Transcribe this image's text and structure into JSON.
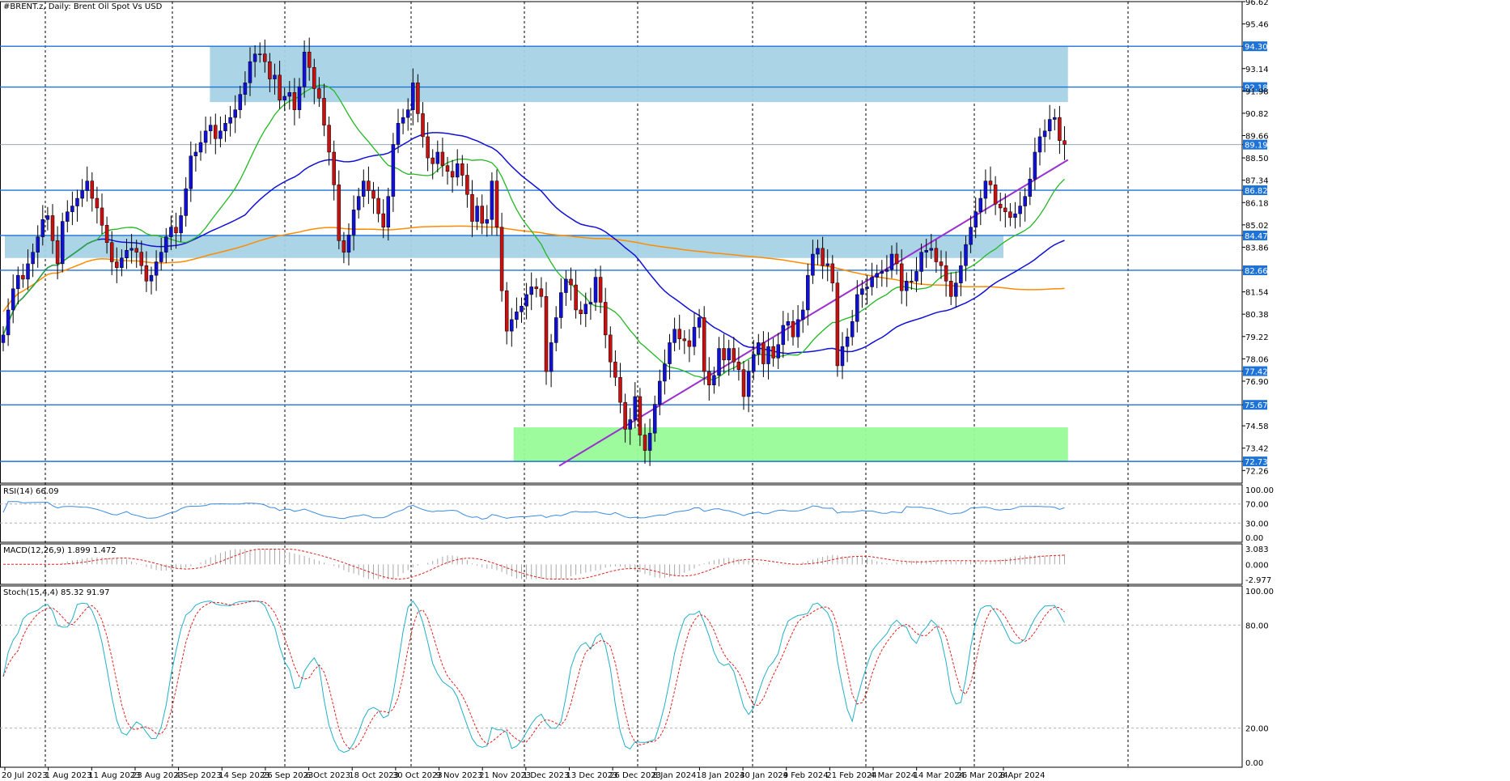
{
  "chart_data": {
    "type": "candlestick",
    "title": "#BRENT.z, Daily: Brent Oil Spot Vs USD",
    "price_axis": {
      "min": 71.6,
      "max": 96.62,
      "ticks": [
        "96.62",
        "95.46",
        "94.30",
        "93.14",
        "92.18",
        "91.98",
        "90.82",
        "89.66",
        "89.19",
        "88.50",
        "87.34",
        "86.82",
        "86.18",
        "85.02",
        "84.47",
        "83.86",
        "82.66",
        "81.54",
        "80.38",
        "79.22",
        "78.06",
        "77.42",
        "76.90",
        "75.67",
        "74.58",
        "73.42",
        "72.73",
        "72.26"
      ]
    },
    "highlight_levels": [
      "94.30",
      "92.18",
      "89.19",
      "86.82",
      "84.47",
      "82.66",
      "77.42",
      "75.67",
      "72.73"
    ],
    "horizontal_lines": [
      94.3,
      92.18,
      86.82,
      84.47,
      82.66,
      77.42,
      75.67,
      72.73
    ],
    "current_price_line": 89.19,
    "zones": [
      {
        "name": "resistance-zone",
        "start": "2023-09-12",
        "end": "2024-04-25",
        "top": 94.3,
        "bottom": 91.4,
        "color": "#a6d3e6"
      },
      {
        "name": "mid-zone",
        "start": "2023-07-20",
        "end": "2024-04-08",
        "top": 84.47,
        "bottom": 83.3,
        "color": "#a6d3e6"
      },
      {
        "name": "support-zone",
        "start": "2023-12-01",
        "end": "2024-04-25",
        "top": 74.5,
        "bottom": 72.73,
        "color": "#98fb98"
      }
    ],
    "trendline": {
      "start": [
        "2023-12-13",
        72.5
      ],
      "end": [
        "2024-04-25",
        88.4
      ],
      "color": "#9b30d0"
    },
    "date_ticks": [
      "20 Jul 2023",
      "1 Aug 2023",
      "11 Aug 2023",
      "23 Aug 2023",
      "4 Sep 2023",
      "14 Sep 2023",
      "26 Sep 2023",
      "6 Oct 2023",
      "18 Oct 2023",
      "30 Oct 2023",
      "9 Nov 2023",
      "21 Nov 2023",
      "1 Dec 2023",
      "13 Dec 2023",
      "26 Dec 2023",
      "8 Jan 2024",
      "18 Jan 2024",
      "30 Jan 2024",
      "9 Feb 2024",
      "21 Feb 2024",
      "4 Mar 2024",
      "14 Mar 2024",
      "26 Mar 2024",
      "8 Apr 2024"
    ],
    "candles_close": [
      79.3,
      80.6,
      81.7,
      82.4,
      82.2,
      83.0,
      83.6,
      84.4,
      85.3,
      85.5,
      84.2,
      83.0,
      85.2,
      85.7,
      86.0,
      86.4,
      86.8,
      87.3,
      86.4,
      85.9,
      85.0,
      84.1,
      83.1,
      82.8,
      83.3,
      83.7,
      83.8,
      83.6,
      82.9,
      82.1,
      82.4,
      83.1,
      83.6,
      84.4,
      84.9,
      84.6,
      85.5,
      86.9,
      88.6,
      88.8,
      89.3,
      89.9,
      90.2,
      89.5,
      89.9,
      90.3,
      90.6,
      91.0,
      91.8,
      92.4,
      93.5,
      93.9,
      93.9,
      93.5,
      92.6,
      92.8,
      91.5,
      91.7,
      91.9,
      91.0,
      92.2,
      94.0,
      93.2,
      92.1,
      91.6,
      90.2,
      88.8,
      87.1,
      84.2,
      83.6,
      84.5,
      85.8,
      86.5,
      87.3,
      86.8,
      86.4,
      85.6,
      84.9,
      86.5,
      89.2,
      90.3,
      90.6,
      91.0,
      92.4,
      90.8,
      89.6,
      88.5,
      88.2,
      88.8,
      88.1,
      87.8,
      87.5,
      88.2,
      87.6,
      86.6,
      85.2,
      86.0,
      85.1,
      85.3,
      87.3,
      84.9,
      81.6,
      79.5,
      80.1,
      80.5,
      80.8,
      81.4,
      81.8,
      81.7,
      81.3,
      77.4,
      78.9,
      80.2,
      81.5,
      82.2,
      81.9,
      80.6,
      80.4,
      80.9,
      81.0,
      82.3,
      81.0,
      79.3,
      77.9,
      77.1,
      75.8,
      74.4,
      74.9,
      76.1,
      74.1,
      73.3,
      74.2,
      75.7,
      76.9,
      77.8,
      78.9,
      79.6,
      79.1,
      79.0,
      78.7,
      79.7,
      80.2,
      77.4,
      76.7,
      77.2,
      78.6,
      78.0,
      78.6,
      77.9,
      77.5,
      76.1,
      77.4,
      78.3,
      78.9,
      77.8,
      78.7,
      78.1,
      78.8,
      79.8,
      80.0,
      79.2,
      80.1,
      80.6,
      82.4,
      83.5,
      83.8,
      82.9,
      83.0,
      82.0,
      77.7,
      78.7,
      79.2,
      80.0,
      81.4,
      81.7,
      81.8,
      82.3,
      82.5,
      82.6,
      82.7,
      83.5,
      83.0,
      81.6,
      82.1,
      82.1,
      82.6,
      83.6,
      83.7,
      83.8,
      83.1,
      82.9,
      82.1,
      81.3,
      82.0,
      82.9,
      84.0,
      84.9,
      85.7,
      86.4,
      87.3,
      87.1,
      86.1,
      85.9,
      85.7,
      85.4,
      85.6,
      86.0,
      86.5,
      87.4,
      88.8,
      89.6,
      89.9,
      90.5,
      90.6,
      89.4,
      89.2
    ],
    "ma_fast": {
      "name": "MA green",
      "color": "#22b822"
    },
    "ma_mid": {
      "name": "MA blue",
      "color": "#1010d8"
    },
    "ma_slow": {
      "name": "MA orange",
      "color": "#ff8c00"
    },
    "indicators": [
      {
        "id": "rsi",
        "title": "RSI(14) 66.09",
        "ticks": [
          "100.00",
          "70.00",
          "30.00",
          "0.00"
        ],
        "range": [
          0,
          100
        ],
        "levels": [
          70,
          30
        ]
      },
      {
        "id": "macd",
        "title": "MACD(12,26,9) 1.899 1.472",
        "ticks": [
          "3.083",
          "0.000",
          "-2.977"
        ],
        "range": [
          -2.977,
          3.083
        ]
      },
      {
        "id": "stoch",
        "title": "Stoch(15,4,4) 85.32 91.97",
        "ticks": [
          "100.00",
          "80.00",
          "20.00",
          "0.00"
        ],
        "range": [
          0,
          100
        ],
        "levels": [
          80,
          20
        ]
      }
    ]
  },
  "colors": {
    "bull": "#1010d8",
    "bear": "#c81010",
    "level_line": "#1e73d6",
    "tag_bg": "#1e73d6",
    "grid_dash": "#000000",
    "rsi_line": "#3b8be0",
    "macd_hist": "#a8a8a8",
    "macd_signal": "#e02020",
    "stoch_main": "#20b0c8",
    "stoch_signal": "#e02020"
  }
}
